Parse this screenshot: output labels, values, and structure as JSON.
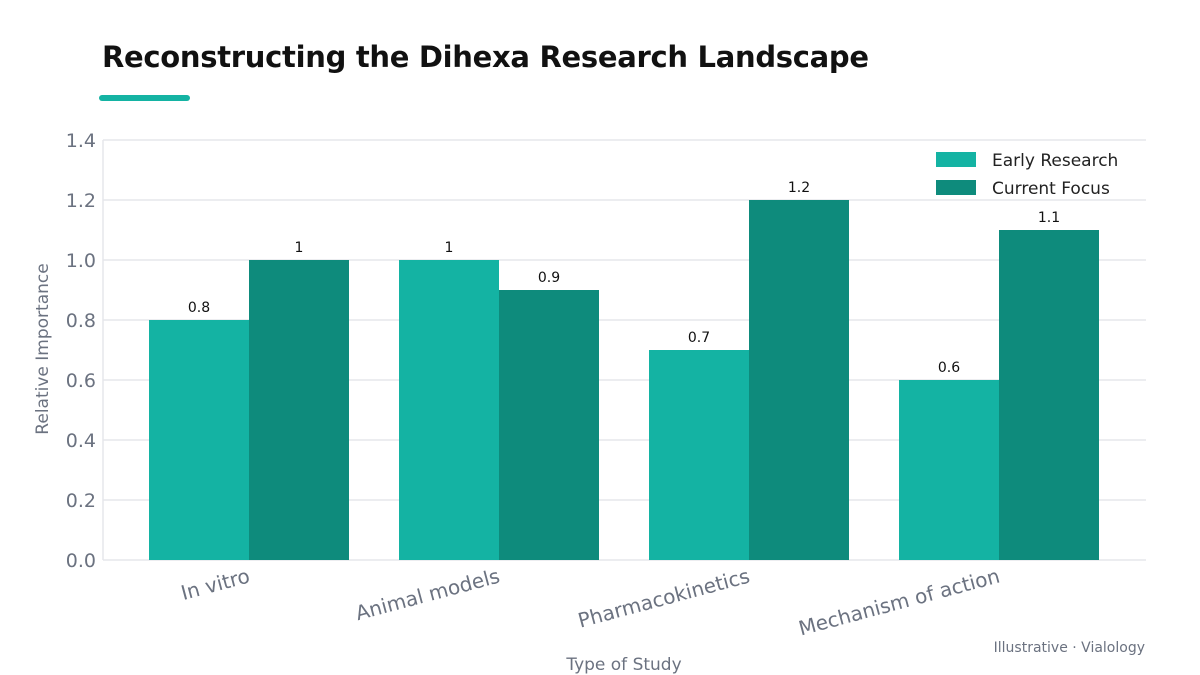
{
  "title": "Reconstructing the Dihexa Research Landscape",
  "source_note": "Illustrative · Vialology",
  "colors": {
    "accent": "#14b3a3",
    "early_research": "#14b3a3",
    "current_focus": "#0e8b7c",
    "grid": "#e5e7eb"
  },
  "chart_data": {
    "type": "bar",
    "categories": [
      "In vitro",
      "Animal models",
      "Pharmacokinetics",
      "Mechanism of action"
    ],
    "series": [
      {
        "name": "Early Research",
        "values": [
          0.8,
          1.0,
          0.7,
          0.6
        ],
        "labels": [
          "0.8",
          "1",
          "0.7",
          "0.6"
        ],
        "color": "#14b3a3"
      },
      {
        "name": "Current Focus",
        "values": [
          1.0,
          0.9,
          1.2,
          1.1
        ],
        "labels": [
          "1",
          "0.9",
          "1.2",
          "1.1"
        ],
        "color": "#0e8b7c"
      }
    ],
    "xlabel": "Type of Study",
    "ylabel": "Relative Importance",
    "ylim": [
      0,
      1.4
    ],
    "yticks": [
      "0.0",
      "0.2",
      "0.4",
      "0.6",
      "0.8",
      "1.0",
      "1.2",
      "1.4"
    ],
    "grid": true,
    "legend_position": "top-right"
  }
}
